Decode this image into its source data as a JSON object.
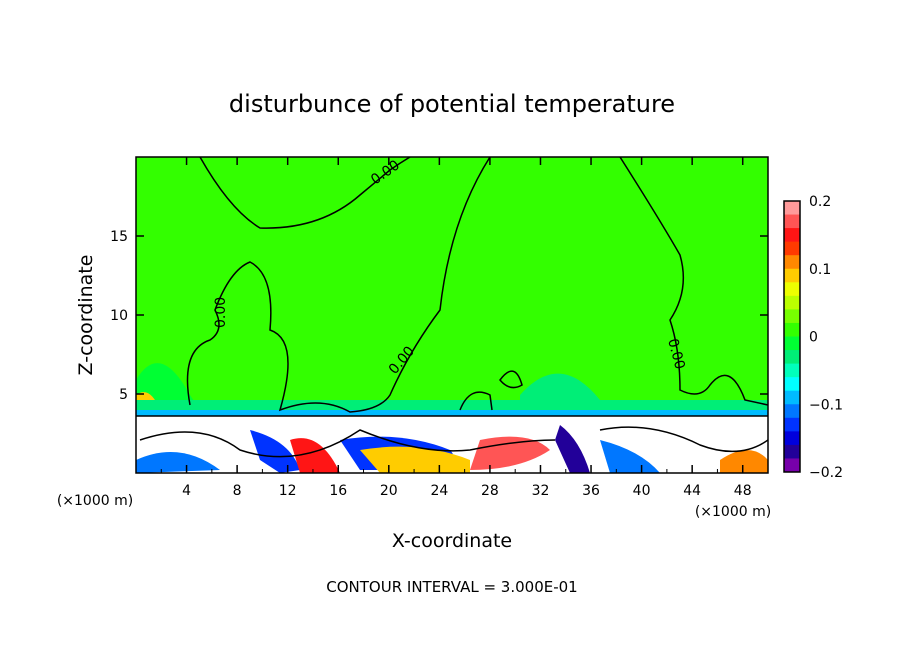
{
  "chart_data": {
    "type": "heatmap",
    "title": "disturbunce of potential temperature",
    "xlabel": "X-coordinate",
    "ylabel": "Z-coordinate",
    "x_unit_left": "(×1000 m)",
    "x_unit_right": "(×1000 m)",
    "xlim": [
      0,
      50
    ],
    "ylim": [
      0,
      20
    ],
    "xticks": [
      4,
      8,
      12,
      16,
      20,
      24,
      28,
      32,
      36,
      40,
      44,
      48
    ],
    "yticks": [
      5,
      10,
      15
    ],
    "contour_label": "0.00",
    "footer": "CONTOUR INTERVAL = 3.000E-01",
    "colorbar": {
      "range": [
        -0.2,
        0.2
      ],
      "tick_values": [
        0.2,
        0.1,
        0,
        -0.1,
        -0.2
      ],
      "tick_labels": [
        "0.2",
        "0.1",
        "0",
        "−0.1",
        "−0.2"
      ],
      "colors_top_to_bottom": [
        "#ff9a9a",
        "#ff5555",
        "#ff1515",
        "#ff3a00",
        "#ff8800",
        "#ffcc00",
        "#eeff00",
        "#bbff00",
        "#77ff00",
        "#33ff00",
        "#00ff33",
        "#00ee77",
        "#00ffbb",
        "#00ffff",
        "#00bbff",
        "#0077ff",
        "#0033ff",
        "#0000dd",
        "#220099",
        "#7700aa"
      ]
    }
  }
}
